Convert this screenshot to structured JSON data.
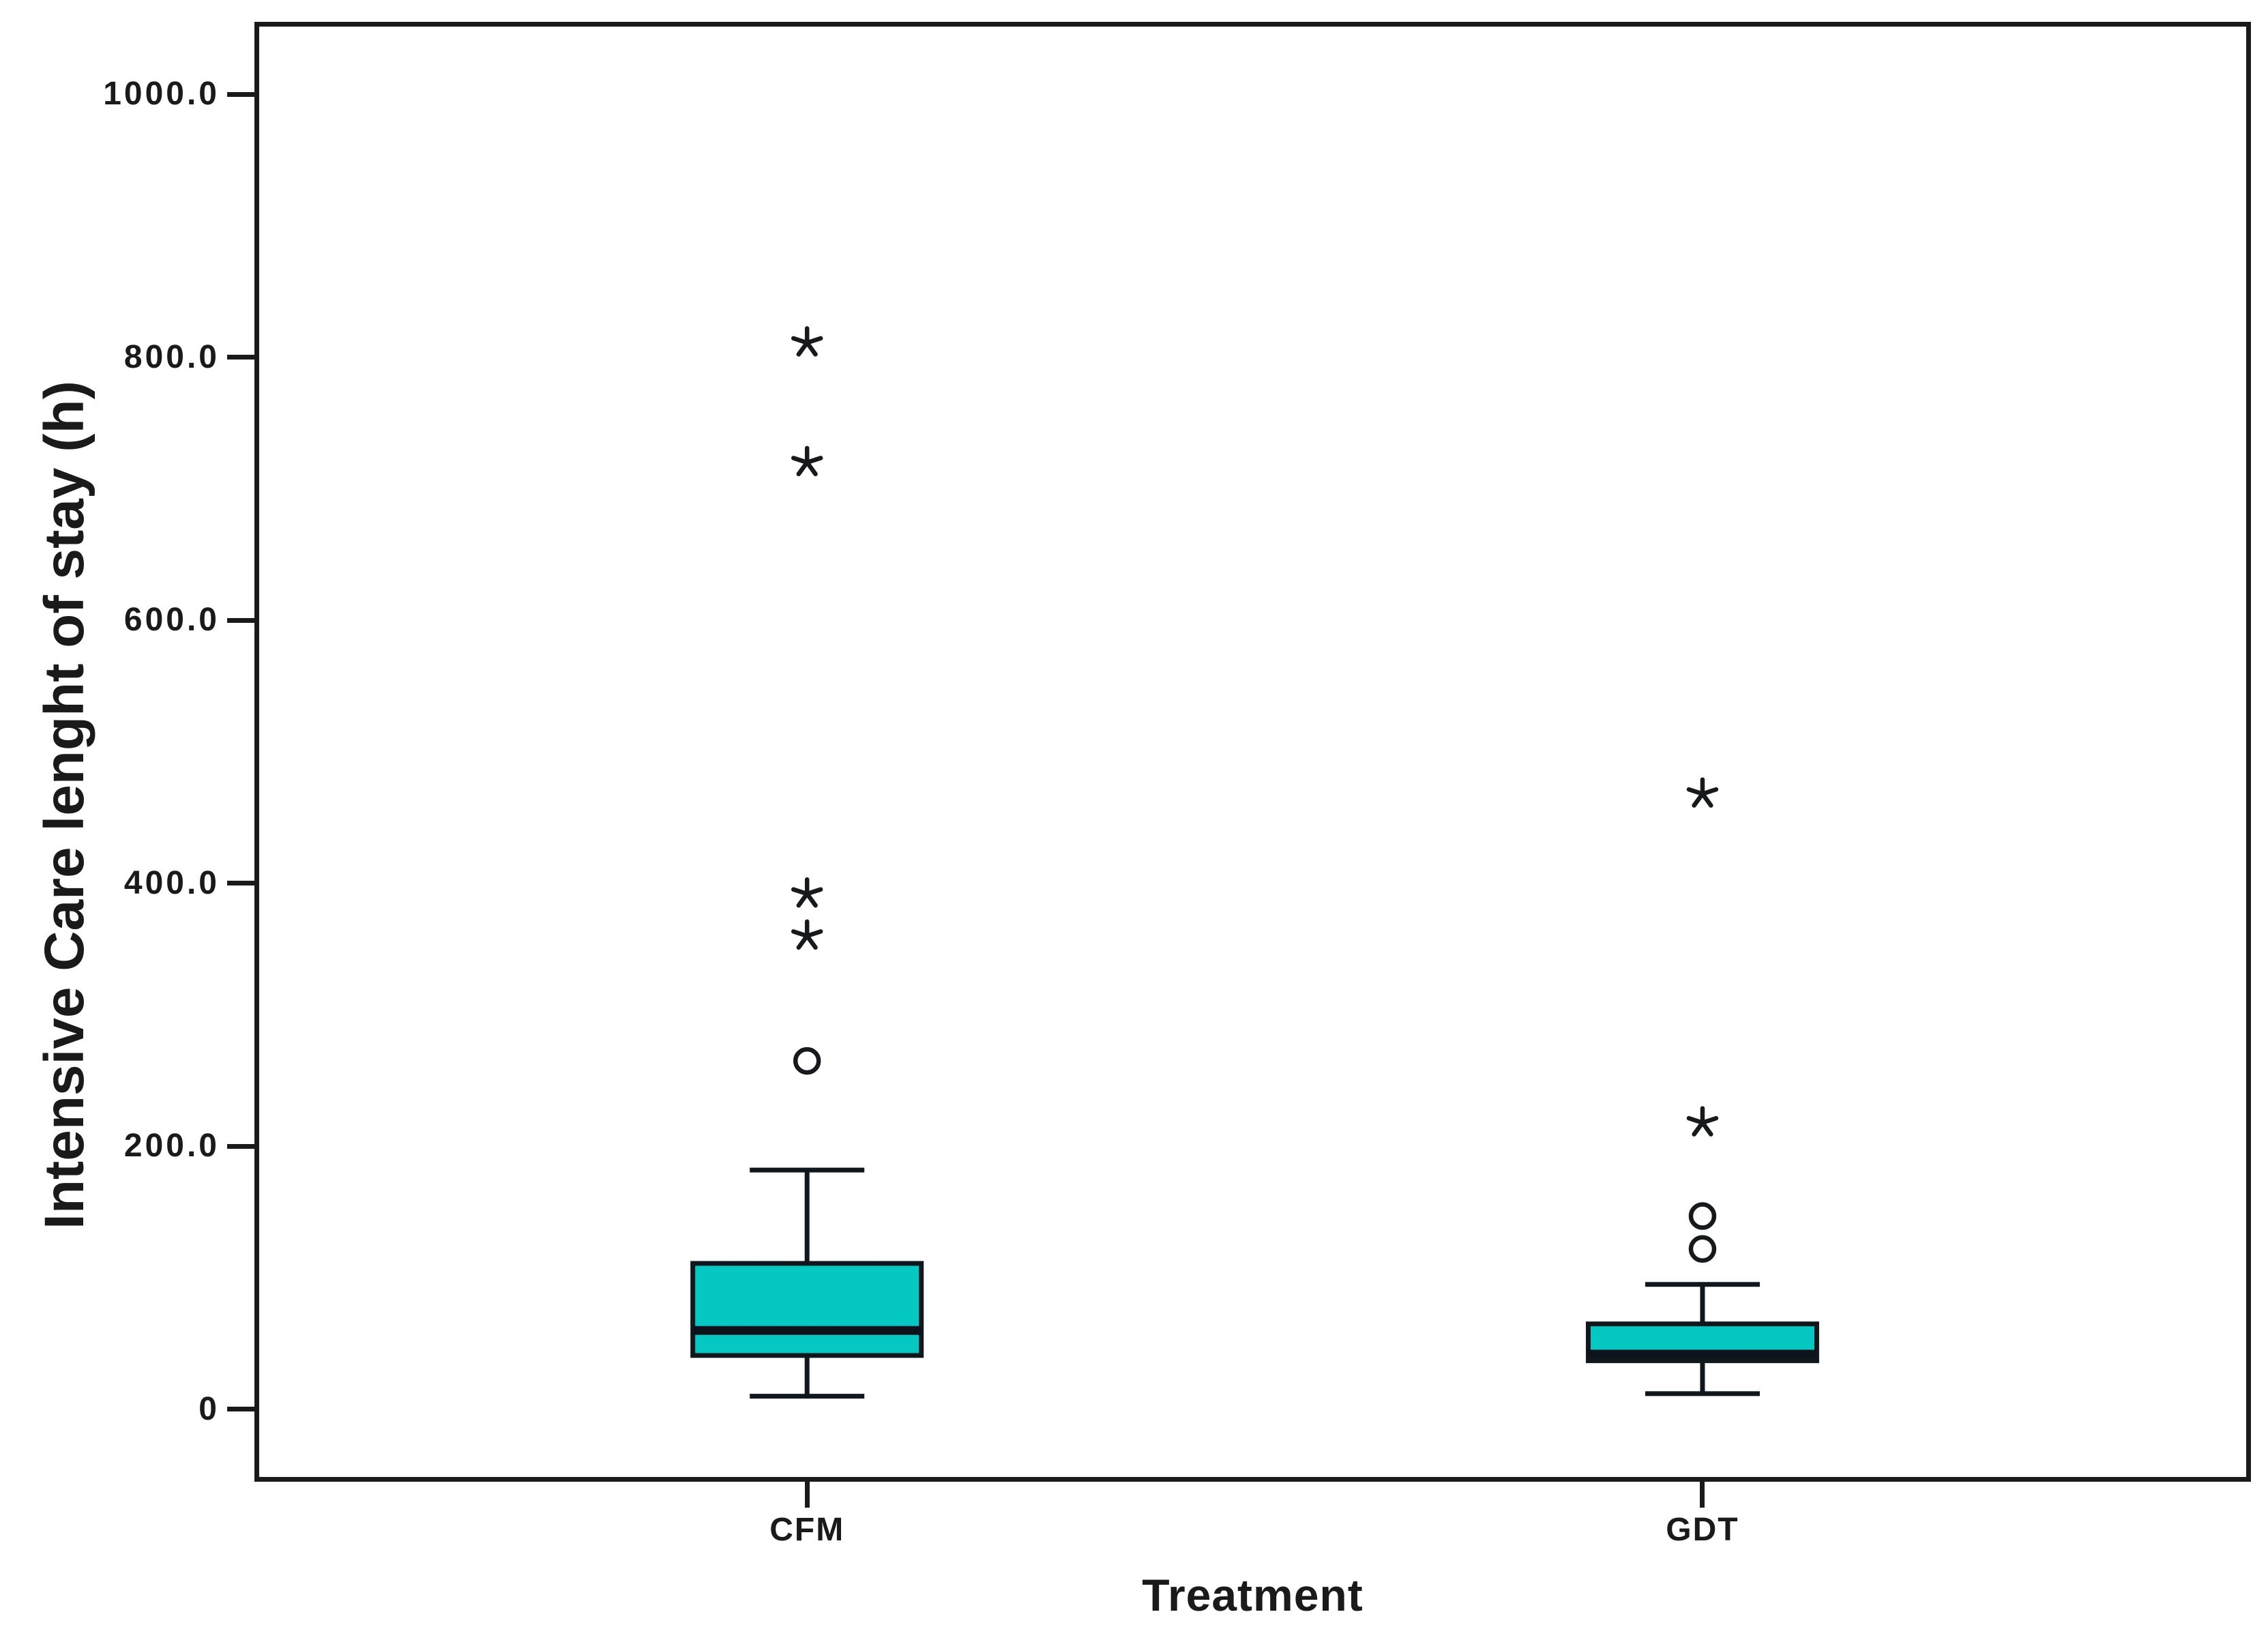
{
  "figure": {
    "background": "#ffffff",
    "frame_color": "#1a1a1a",
    "text_color": "#1a1a1a"
  },
  "chart_data": {
    "type": "boxplot",
    "title": "",
    "xlabel": "Treatment",
    "ylabel": "Intensive Care lenght of stay (h)",
    "categories": [
      "CFM",
      "GDT"
    ],
    "ylim": [
      -55,
      1055
    ],
    "grid": false,
    "legend": null,
    "yticks": [
      {
        "value": 0,
        "label": "0"
      },
      {
        "value": 200,
        "label": "200.0"
      },
      {
        "value": 400,
        "label": "400.0"
      },
      {
        "value": 600,
        "label": "600.0"
      },
      {
        "value": 800,
        "label": "800.0"
      },
      {
        "value": 1000,
        "label": "1000.0"
      }
    ],
    "series": [
      {
        "name": "CFM",
        "whisker_low": 10,
        "q1": 41,
        "median": 60,
        "q3": 111,
        "whisker_high": 182,
        "outliers_mild": [
          265
        ],
        "outliers_extreme": [
          360,
          392,
          720,
          811
        ]
      },
      {
        "name": "GDT",
        "whisker_low": 12,
        "q1": 37,
        "median": 42,
        "q3": 65,
        "whisker_high": 95,
        "outliers_mild": [
          122,
          147
        ],
        "outliers_extreme": [
          218,
          468
        ]
      }
    ],
    "box_fill": "#06c8c2",
    "box_stroke": "#10181d",
    "median_color": "#0d131a",
    "marker_color": "#17191c",
    "marker_mild_shape": "circle",
    "marker_extreme_shape": "star"
  }
}
